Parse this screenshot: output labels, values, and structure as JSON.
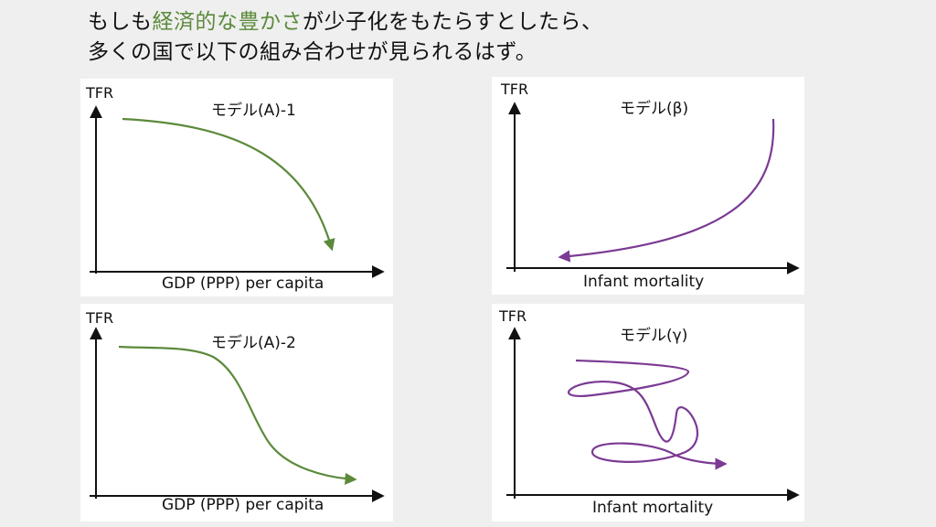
{
  "heading": {
    "line1_pre": "もしも",
    "line1_highlight": "経済的な豊かさ",
    "line1_post": "が少子化をもたらすとしたら、",
    "line2": "多くの国で以下の組み合わせが見られるはず。",
    "highlight_color": "#5b8a3a"
  },
  "panels": {
    "a1": {
      "ylabel": "TFR",
      "model": "モデル(A)-1",
      "xlabel": "GDP (PPP) per capita",
      "curve_color": "#5b8a3a"
    },
    "a2": {
      "ylabel": "TFR",
      "model": "モデル(A)-2",
      "xlabel": "GDP (PPP) per capita",
      "curve_color": "#5b8a3a"
    },
    "beta": {
      "ylabel": "TFR",
      "model": "モデル(β)",
      "xlabel": "Infant mortality",
      "curve_color": "#7b3a93"
    },
    "gamma": {
      "ylabel": "TFR",
      "model": "モデル(γ)",
      "xlabel": "Infant mortality",
      "curve_color": "#7b3a93"
    }
  }
}
